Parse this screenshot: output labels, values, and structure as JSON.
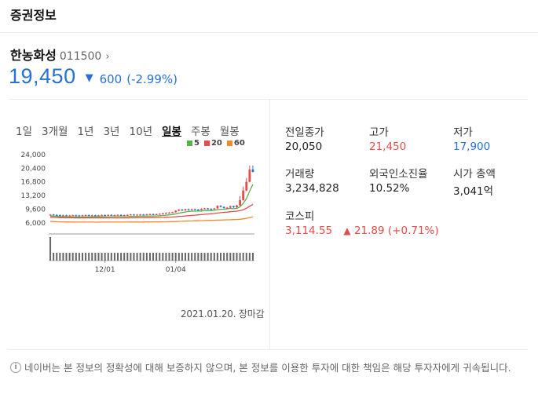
{
  "header": {
    "title": "증권정보"
  },
  "stock": {
    "name": "한농화성",
    "code": "011500",
    "link_arrow": "›",
    "price": "19,450",
    "direction_arrow": "▼",
    "change": "600",
    "change_pct": "(-2.99%)"
  },
  "tabs": [
    {
      "label": "1일",
      "active": false
    },
    {
      "label": "3개월",
      "active": false
    },
    {
      "label": "1년",
      "active": false
    },
    {
      "label": "3년",
      "active": false
    },
    {
      "label": "10년",
      "active": false
    },
    {
      "label": "일봉",
      "active": true
    },
    {
      "label": "주봉",
      "active": false
    },
    {
      "label": "월봉",
      "active": false
    }
  ],
  "legend": [
    {
      "label": "5",
      "color": "#55b34a"
    },
    {
      "label": "20",
      "color": "#e84b4b"
    },
    {
      "label": "60",
      "color": "#f5862b"
    }
  ],
  "chart_data": {
    "type": "candlestick",
    "y_ticks": [
      "24,000",
      "20,400",
      "16,800",
      "13,200",
      "9,600",
      "6,000"
    ],
    "y_tick_values": [
      24000,
      20400,
      16800,
      13200,
      9600,
      6000
    ],
    "ylim": [
      3500,
      25000
    ],
    "x_ticks": [
      "12/01",
      "01/04"
    ],
    "x_tick_indices": [
      17,
      39
    ],
    "colors": {
      "up": "#e84b4b",
      "down": "#2670d8",
      "ma5": "#55b34a",
      "ma20": "#e84b4b",
      "ma60": "#f5862b",
      "volume": "#666666"
    },
    "closes": [
      8200,
      8100,
      8050,
      7950,
      8000,
      7900,
      7950,
      8000,
      7950,
      7900,
      8000,
      8050,
      7950,
      8000,
      7950,
      8000,
      8050,
      8000,
      8100,
      8000,
      8050,
      8100,
      8000,
      8050,
      8100,
      8200,
      8100,
      8150,
      8200,
      8100,
      8250,
      8300,
      8200,
      8300,
      8400,
      8500,
      8600,
      8700,
      8800,
      9200,
      9500,
      9300,
      9600,
      9400,
      9600,
      9500,
      9400,
      9700,
      9800,
      9700,
      9600,
      9800,
      10500,
      10200,
      9900,
      10000,
      10400,
      10100,
      10600,
      12000,
      14500,
      16800,
      20050,
      19450
    ],
    "volumes": [
      3,
      1,
      1,
      1,
      1,
      1,
      1,
      1,
      1,
      1,
      1,
      1,
      1,
      1,
      1,
      1,
      1,
      1,
      1,
      1,
      1,
      1,
      1,
      1,
      1,
      1,
      1,
      1,
      1,
      1,
      1,
      1,
      1,
      1,
      1,
      1,
      1,
      1,
      1,
      1,
      1,
      1,
      1,
      1,
      1,
      1,
      1,
      1,
      1,
      1,
      1,
      1,
      1,
      1,
      1,
      1,
      1,
      1,
      1,
      1,
      1,
      1,
      1,
      1
    ]
  },
  "chart_footer": "2021.01.20. 장마감",
  "info": [
    {
      "label": "전일종가",
      "value": "20,050",
      "color": "#222222"
    },
    {
      "label": "고가",
      "value": "21,450",
      "color": "#e84b4b"
    },
    {
      "label": "저가",
      "value": "17,900",
      "color": "#2670d8"
    },
    {
      "label": "거래량",
      "value": "3,234,828",
      "color": "#222222"
    },
    {
      "label": "외국인소진율",
      "value": "10.52%",
      "color": "#222222"
    },
    {
      "label": "시가 총액",
      "value": "3,041억",
      "color": "#222222"
    }
  ],
  "kospi": {
    "label": "코스피",
    "value": "3,114.55",
    "arrow": "▲",
    "change": "21.89",
    "change_pct": "(+0.71%)",
    "color": "#e84b4b"
  },
  "notice": {
    "icon": "i",
    "text": "네이버는 본 정보의 정확성에 대해 보증하지 않으며, 본 정보를 이용한 투자에 대한 책임은 해당 투자자에게 귀속됩니다."
  }
}
